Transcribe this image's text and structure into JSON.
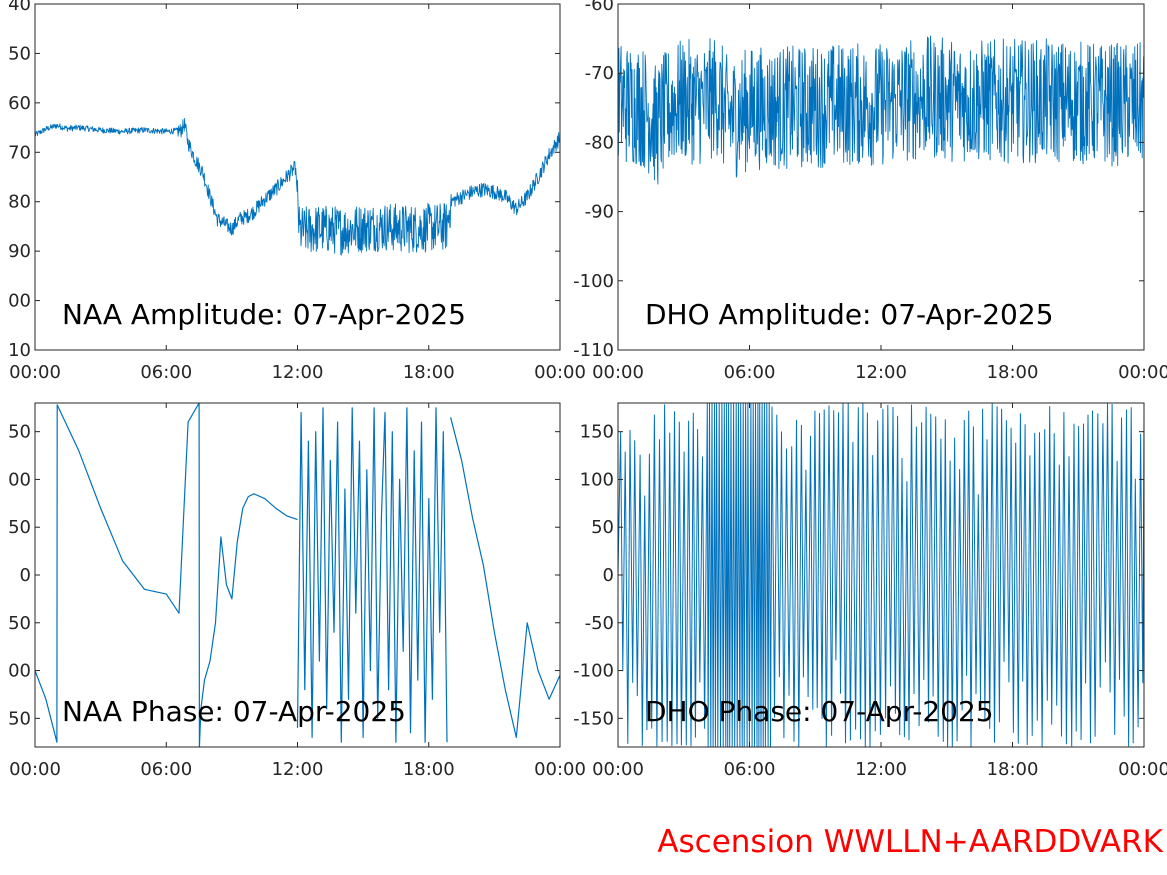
{
  "footer": {
    "station_label": "Ascension WWLLN+AARDDVARK",
    "color": "#ff0000"
  },
  "style": {
    "line_color": "#0072bd",
    "axis_color": "#262626"
  },
  "chart_data": [
    {
      "id": "naa-amplitude",
      "type": "line",
      "title": "NAA Amplitude: 07-Apr-2025",
      "xlabel": "",
      "ylabel": "",
      "xlim": [
        "00:00",
        "24:00"
      ],
      "ylim": [
        -110,
        -40
      ],
      "x_ticks": [
        "00:00",
        "06:00",
        "12:00",
        "18:00",
        "00:00"
      ],
      "y_ticks": [
        -40,
        -50,
        -60,
        -70,
        -80,
        -90,
        -100,
        -110
      ],
      "y_tick_labels_visible": [
        "40",
        "50",
        "60",
        "70",
        "80",
        "90",
        "00",
        "10"
      ],
      "grid": false,
      "noise_band": [
        {
          "from": "00:00",
          "to": "06:30",
          "width": 0.6
        },
        {
          "from": "06:30",
          "to": "11:55",
          "width": 1.5
        },
        {
          "from": "12:00",
          "to": "19:00",
          "width": 5.0
        },
        {
          "from": "19:00",
          "to": "24:00",
          "width": 1.5
        }
      ],
      "series": [
        {
          "x": [
            "00:00",
            "00:30",
            "01:00",
            "01:30",
            "02:00",
            "03:00",
            "04:00",
            "05:00",
            "06:00",
            "06:40",
            "06:50",
            "07:00",
            "07:20",
            "07:40",
            "08:00",
            "08:20",
            "08:40",
            "09:00",
            "09:20",
            "09:40",
            "10:00",
            "10:30",
            "11:00",
            "11:30",
            "11:55",
            "12:05",
            "13:00",
            "14:00",
            "15:00",
            "16:00",
            "17:00",
            "18:00",
            "18:50",
            "19:00",
            "19:30",
            "20:00",
            "20:30",
            "21:00",
            "21:30",
            "22:00",
            "22:30",
            "23:00",
            "23:30",
            "24:00"
          ],
          "y": [
            -66.5,
            -65.3,
            -64.6,
            -65.2,
            -65.0,
            -65.5,
            -65.8,
            -65.5,
            -65.8,
            -65.6,
            -64.3,
            -68.0,
            -71.5,
            -74.0,
            -79.0,
            -83.5,
            -84.5,
            -85.5,
            -83.5,
            -83.0,
            -82.0,
            -79.5,
            -77.5,
            -75.0,
            -73.0,
            -86.0,
            -85.5,
            -85.8,
            -85.3,
            -85.0,
            -85.5,
            -85.3,
            -85.0,
            -80.0,
            -79.0,
            -78.0,
            -77.5,
            -78.0,
            -79.0,
            -81.5,
            -79.0,
            -75.0,
            -70.5,
            -67.0
          ]
        }
      ]
    },
    {
      "id": "dho-amplitude",
      "type": "line",
      "title": "DHO Amplitude: 07-Apr-2025",
      "xlabel": "",
      "ylabel": "",
      "xlim": [
        "00:00",
        "24:00"
      ],
      "ylim": [
        -110,
        -60
      ],
      "x_ticks": [
        "00:00",
        "06:00",
        "12:00",
        "18:00",
        "00:00"
      ],
      "y_ticks": [
        -60,
        -70,
        -80,
        -90,
        -100,
        -110
      ],
      "y_tick_labels_visible": [
        "-60",
        "-70",
        "-80",
        "-90",
        "-100",
        "-110"
      ],
      "grid": false,
      "noise_band": [
        {
          "from": "00:00",
          "to": "24:00",
          "width": 9.0
        }
      ],
      "series": [
        {
          "x": [
            "00:00",
            "00:30",
            "01:00",
            "01:30",
            "01:45",
            "02:00",
            "02:30",
            "03:00",
            "04:00",
            "04:30",
            "05:00",
            "05:30",
            "06:00",
            "07:00",
            "08:00",
            "10:00",
            "12:00",
            "14:00",
            "16:00",
            "18:00",
            "20:00",
            "22:00",
            "24:00"
          ],
          "y": [
            -74.0,
            -74.5,
            -74.5,
            -76.0,
            -78.0,
            -76.5,
            -74.5,
            -74.0,
            -74.5,
            -73.0,
            -76.5,
            -76.0,
            -75.0,
            -75.0,
            -75.0,
            -74.5,
            -74.5,
            -73.5,
            -74.0,
            -74.0,
            -74.0,
            -74.5,
            -74.5
          ]
        }
      ]
    },
    {
      "id": "naa-phase",
      "type": "line",
      "title": "NAA Phase: 07-Apr-2025",
      "xlabel": "",
      "ylabel": "",
      "xlim": [
        "00:00",
        "24:00"
      ],
      "ylim": [
        -180,
        180
      ],
      "x_ticks": [
        "00:00",
        "06:00",
        "12:00",
        "18:00",
        "00:00"
      ],
      "y_ticks": [
        150,
        100,
        50,
        0,
        -50,
        -100,
        -150
      ],
      "y_tick_labels_visible": [
        "50",
        "00",
        "50",
        "0",
        "50",
        "00",
        "50"
      ],
      "grid": false,
      "series": [
        {
          "x": [
            "00:00",
            "00:30",
            "01:00",
            "01:01",
            "02:00",
            "03:00",
            "04:00",
            "05:00",
            "06:00",
            "06:35",
            "07:00",
            "07:30",
            "07:31",
            "07:35",
            "07:45",
            "08:00",
            "08:15",
            "08:30",
            "08:45",
            "09:00",
            "09:15",
            "09:30",
            "09:45",
            "10:00",
            "10:30",
            "11:00",
            "11:30",
            "12:00"
          ],
          "y": [
            -100,
            -130,
            -175,
            178,
            130,
            70,
            15,
            -15,
            -20,
            -40,
            160,
            180,
            -180,
            -140,
            -110,
            -90,
            -50,
            40,
            -10,
            -25,
            35,
            70,
            82,
            85,
            80,
            70,
            62,
            58
          ]
        },
        {
          "x": [
            "12:00",
            "12:10",
            "12:20",
            "12:30",
            "12:40",
            "12:50",
            "13:00",
            "13:10",
            "13:20",
            "13:30",
            "13:40",
            "13:50",
            "14:00",
            "14:10",
            "14:20",
            "14:30",
            "14:40",
            "14:50",
            "15:00",
            "15:10",
            "15:20",
            "15:30",
            "15:40",
            "15:50",
            "16:00",
            "16:10",
            "16:20",
            "16:30",
            "16:40",
            "16:50",
            "17:00",
            "17:10",
            "17:20",
            "17:30",
            "17:40",
            "17:50",
            "18:00",
            "18:10",
            "18:20",
            "18:30",
            "18:40",
            "18:50"
          ],
          "y": [
            -160,
            170,
            -120,
            140,
            -170,
            150,
            -90,
            175,
            -140,
            120,
            -60,
            160,
            -175,
            90,
            -130,
            175,
            -40,
            140,
            -170,
            110,
            -100,
            175,
            -150,
            60,
            170,
            -120,
            150,
            -175,
            100,
            -80,
            175,
            -165,
            130,
            -110,
            160,
            -175,
            80,
            -130,
            175,
            -60,
            150,
            -175
          ]
        },
        {
          "x": [
            "19:00",
            "19:30",
            "20:00",
            "20:30",
            "21:00",
            "21:30",
            "22:00",
            "22:30",
            "23:00",
            "23:30",
            "24:00"
          ],
          "y": [
            165,
            120,
            60,
            10,
            -60,
            -120,
            -170,
            -50,
            -100,
            -130,
            -105
          ]
        }
      ]
    },
    {
      "id": "dho-phase",
      "type": "line",
      "title": "DHO Phase: 07-Apr-2025",
      "xlabel": "",
      "ylabel": "",
      "xlim": [
        "00:00",
        "24:00"
      ],
      "ylim": [
        -180,
        180
      ],
      "x_ticks": [
        "00:00",
        "06:00",
        "12:00",
        "18:00",
        "00:00"
      ],
      "y_ticks": [
        150,
        100,
        50,
        0,
        -50,
        -100,
        -150
      ],
      "y_tick_labels_visible": [
        "150",
        "100",
        "50",
        "0",
        "-50",
        "-100",
        "-150"
      ],
      "grid": false,
      "series": [
        {
          "x": [
            "00:00",
            "24:00"
          ],
          "y": [
            0,
            0
          ],
          "pattern": "full-range phase wrapping, densest 04:00-07:00"
        }
      ]
    }
  ]
}
